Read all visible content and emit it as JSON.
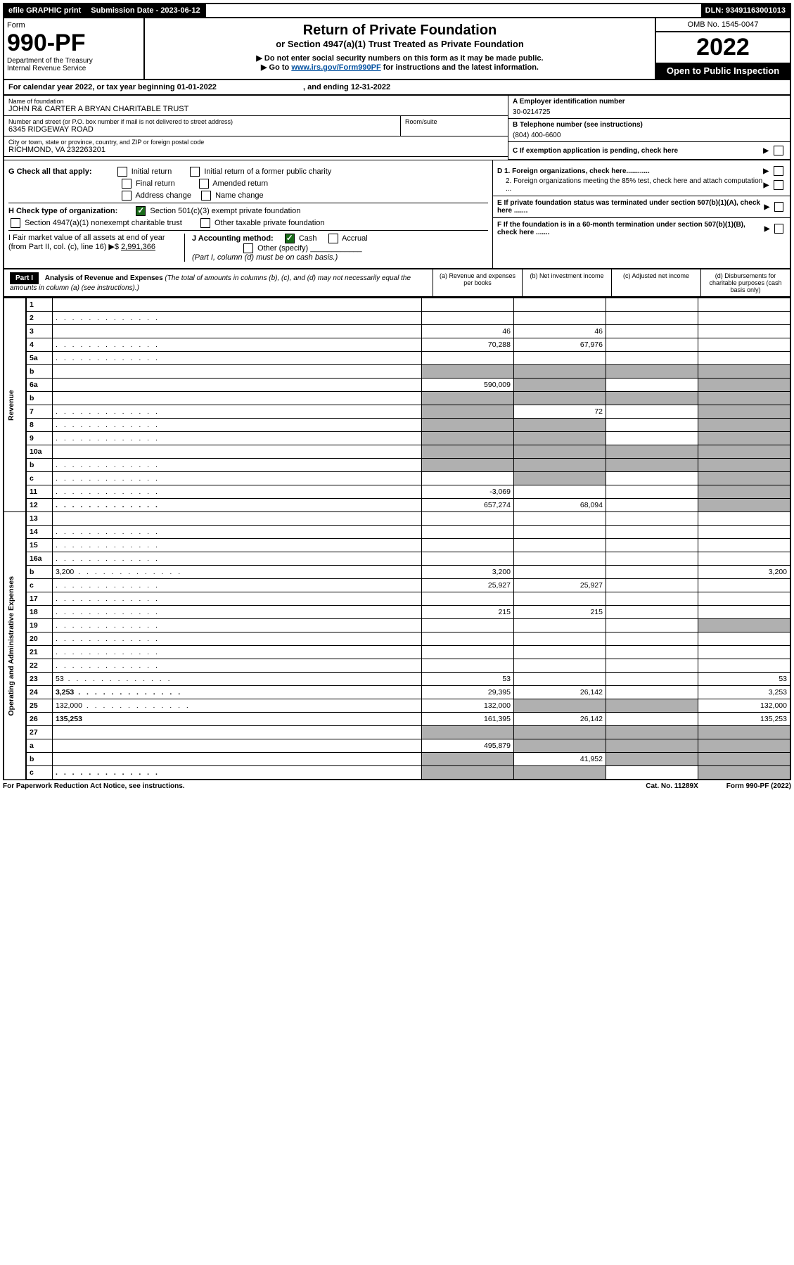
{
  "topbar": {
    "efile": "efile GRAPHIC print",
    "sub_label": "Submission Date - 2023-06-12",
    "dln": "DLN: 93491163001013"
  },
  "header": {
    "form_word": "Form",
    "form_no": "990-PF",
    "dept1": "Department of the Treasury",
    "dept2": "Internal Revenue Service",
    "title": "Return of Private Foundation",
    "subtitle": "or Section 4947(a)(1) Trust Treated as Private Foundation",
    "instr1": "▶ Do not enter social security numbers on this form as it may be made public.",
    "instr2_pre": "▶ Go to ",
    "instr2_link": "www.irs.gov/Form990PF",
    "instr2_post": " for instructions and the latest information.",
    "omb": "OMB No. 1545-0047",
    "year": "2022",
    "open": "Open to Public Inspection"
  },
  "cal": {
    "text_pre": "For calendar year 2022, or tax year beginning ",
    "begin": "01-01-2022",
    "mid": " , and ending ",
    "end": "12-31-2022"
  },
  "entity": {
    "name_label": "Name of foundation",
    "name": "JOHN R& CARTER A BRYAN CHARITABLE TRUST",
    "addr_label": "Number and street (or P.O. box number if mail is not delivered to street address)",
    "addr": "6345 RIDGEWAY ROAD",
    "room_label": "Room/suite",
    "city_label": "City or town, state or province, country, and ZIP or foreign postal code",
    "city": "RICHMOND, VA  232263201",
    "ein_label": "A Employer identification number",
    "ein": "30-0214725",
    "phone_label": "B Telephone number (see instructions)",
    "phone": "(804) 400-6600",
    "c_label": "C If exemption application is pending, check here",
    "d1": "D 1. Foreign organizations, check here............",
    "d2": "2. Foreign organizations meeting the 85% test, check here and attach computation ...",
    "e_label": "E  If private foundation status was terminated under section 507(b)(1)(A), check here .......",
    "f_label": "F  If the foundation is in a 60-month termination under section 507(b)(1)(B), check here .......",
    "g_label": "G Check all that apply:",
    "g_opts": [
      "Initial return",
      "Initial return of a former public charity",
      "Final return",
      "Amended return",
      "Address change",
      "Name change"
    ],
    "h_label": "H Check type of organization:",
    "h1": "Section 501(c)(3) exempt private foundation",
    "h2": "Section 4947(a)(1) nonexempt charitable trust",
    "h3": "Other taxable private foundation",
    "i_label": "I Fair market value of all assets at end of year (from Part II, col. (c), line 16) ▶$ ",
    "i_val": "2,991,366",
    "j_label": "J Accounting method:",
    "j1": "Cash",
    "j2": "Accrual",
    "j3": "Other (specify)",
    "j_note": "(Part I, column (d) must be on cash basis.)"
  },
  "part1": {
    "label": "Part I",
    "title": "Analysis of Revenue and Expenses",
    "note": "(The total of amounts in columns (b), (c), and (d) may not necessarily equal the amounts in column (a) (see instructions).)",
    "col_a": "(a)   Revenue and expenses per books",
    "col_b": "(b)   Net investment income",
    "col_c": "(c)   Adjusted net income",
    "col_d": "(d)   Disbursements for charitable purposes (cash basis only)"
  },
  "side": {
    "rev": "Revenue",
    "exp": "Operating and Administrative Expenses"
  },
  "rows": [
    {
      "n": "1",
      "d": "",
      "a": "",
      "b": "",
      "c": ""
    },
    {
      "n": "2",
      "d": "",
      "a": "",
      "b": "",
      "c": "",
      "dots": true
    },
    {
      "n": "3",
      "d": "",
      "a": "46",
      "b": "46",
      "c": ""
    },
    {
      "n": "4",
      "d": "",
      "a": "70,288",
      "b": "67,976",
      "c": "",
      "dots": true
    },
    {
      "n": "5a",
      "d": "",
      "a": "",
      "b": "",
      "c": "",
      "dots": true
    },
    {
      "n": "b",
      "d": "",
      "a": "",
      "b": "",
      "c": "",
      "sh": [
        "a",
        "b",
        "c",
        "d"
      ]
    },
    {
      "n": "6a",
      "d": "",
      "a": "590,009",
      "b": "",
      "c": "",
      "sh": [
        "b",
        "d"
      ]
    },
    {
      "n": "b",
      "d": "",
      "a": "",
      "b": "",
      "c": "",
      "sh": [
        "a",
        "b",
        "c",
        "d"
      ]
    },
    {
      "n": "7",
      "d": "",
      "a": "",
      "b": "72",
      "c": "",
      "sh": [
        "a",
        "d"
      ],
      "dots": true
    },
    {
      "n": "8",
      "d": "",
      "a": "",
      "b": "",
      "c": "",
      "sh": [
        "a",
        "b",
        "d"
      ],
      "dots": true
    },
    {
      "n": "9",
      "d": "",
      "a": "",
      "b": "",
      "c": "",
      "sh": [
        "a",
        "b",
        "d"
      ],
      "dots": true
    },
    {
      "n": "10a",
      "d": "",
      "a": "",
      "b": "",
      "c": "",
      "sh": [
        "a",
        "b",
        "c",
        "d"
      ]
    },
    {
      "n": "b",
      "d": "",
      "a": "",
      "b": "",
      "c": "",
      "sh": [
        "a",
        "b",
        "c",
        "d"
      ],
      "dots": true
    },
    {
      "n": "c",
      "d": "",
      "a": "",
      "b": "",
      "c": "",
      "sh": [
        "b",
        "d"
      ],
      "dots": true
    },
    {
      "n": "11",
      "d": "",
      "a": "-3,069",
      "b": "",
      "c": "",
      "sh": [
        "d"
      ],
      "dots": true
    },
    {
      "n": "12",
      "d": "",
      "a": "657,274",
      "b": "68,094",
      "c": "",
      "bold": true,
      "sh": [
        "d"
      ],
      "dots": true
    },
    {
      "n": "13",
      "d": "",
      "a": "",
      "b": "",
      "c": ""
    },
    {
      "n": "14",
      "d": "",
      "a": "",
      "b": "",
      "c": "",
      "dots": true
    },
    {
      "n": "15",
      "d": "",
      "a": "",
      "b": "",
      "c": "",
      "dots": true
    },
    {
      "n": "16a",
      "d": "",
      "a": "",
      "b": "",
      "c": "",
      "dots": true
    },
    {
      "n": "b",
      "d": "3,200",
      "a": "3,200",
      "b": "",
      "c": "",
      "dots": true
    },
    {
      "n": "c",
      "d": "",
      "a": "25,927",
      "b": "25,927",
      "c": "",
      "dots": true
    },
    {
      "n": "17",
      "d": "",
      "a": "",
      "b": "",
      "c": "",
      "dots": true
    },
    {
      "n": "18",
      "d": "",
      "a": "215",
      "b": "215",
      "c": "",
      "dots": true
    },
    {
      "n": "19",
      "d": "",
      "a": "",
      "b": "",
      "c": "",
      "sh": [
        "d"
      ],
      "dots": true
    },
    {
      "n": "20",
      "d": "",
      "a": "",
      "b": "",
      "c": "",
      "dots": true
    },
    {
      "n": "21",
      "d": "",
      "a": "",
      "b": "",
      "c": "",
      "dots": true
    },
    {
      "n": "22",
      "d": "",
      "a": "",
      "b": "",
      "c": "",
      "dots": true
    },
    {
      "n": "23",
      "d": "53",
      "a": "53",
      "b": "",
      "c": "",
      "dots": true
    },
    {
      "n": "24",
      "d": "3,253",
      "a": "29,395",
      "b": "26,142",
      "c": "",
      "bold": true,
      "dots": true
    },
    {
      "n": "25",
      "d": "132,000",
      "a": "132,000",
      "b": "",
      "c": "",
      "sh": [
        "b",
        "c"
      ],
      "dots": true
    },
    {
      "n": "26",
      "d": "135,253",
      "a": "161,395",
      "b": "26,142",
      "c": "",
      "bold": true
    },
    {
      "n": "27",
      "d": "",
      "a": "",
      "b": "",
      "c": "",
      "sh": [
        "a",
        "b",
        "c",
        "d"
      ]
    },
    {
      "n": "a",
      "d": "",
      "a": "495,879",
      "b": "",
      "c": "",
      "bold": true,
      "sh": [
        "b",
        "c",
        "d"
      ]
    },
    {
      "n": "b",
      "d": "",
      "a": "",
      "b": "41,952",
      "c": "",
      "bold": true,
      "sh": [
        "a",
        "c",
        "d"
      ]
    },
    {
      "n": "c",
      "d": "",
      "a": "",
      "b": "",
      "c": "",
      "bold": true,
      "sh": [
        "a",
        "b",
        "d"
      ],
      "dots": true
    }
  ],
  "footer": {
    "left": "For Paperwork Reduction Act Notice, see instructions.",
    "mid": "Cat. No. 11289X",
    "right": "Form 990-PF (2022)"
  }
}
